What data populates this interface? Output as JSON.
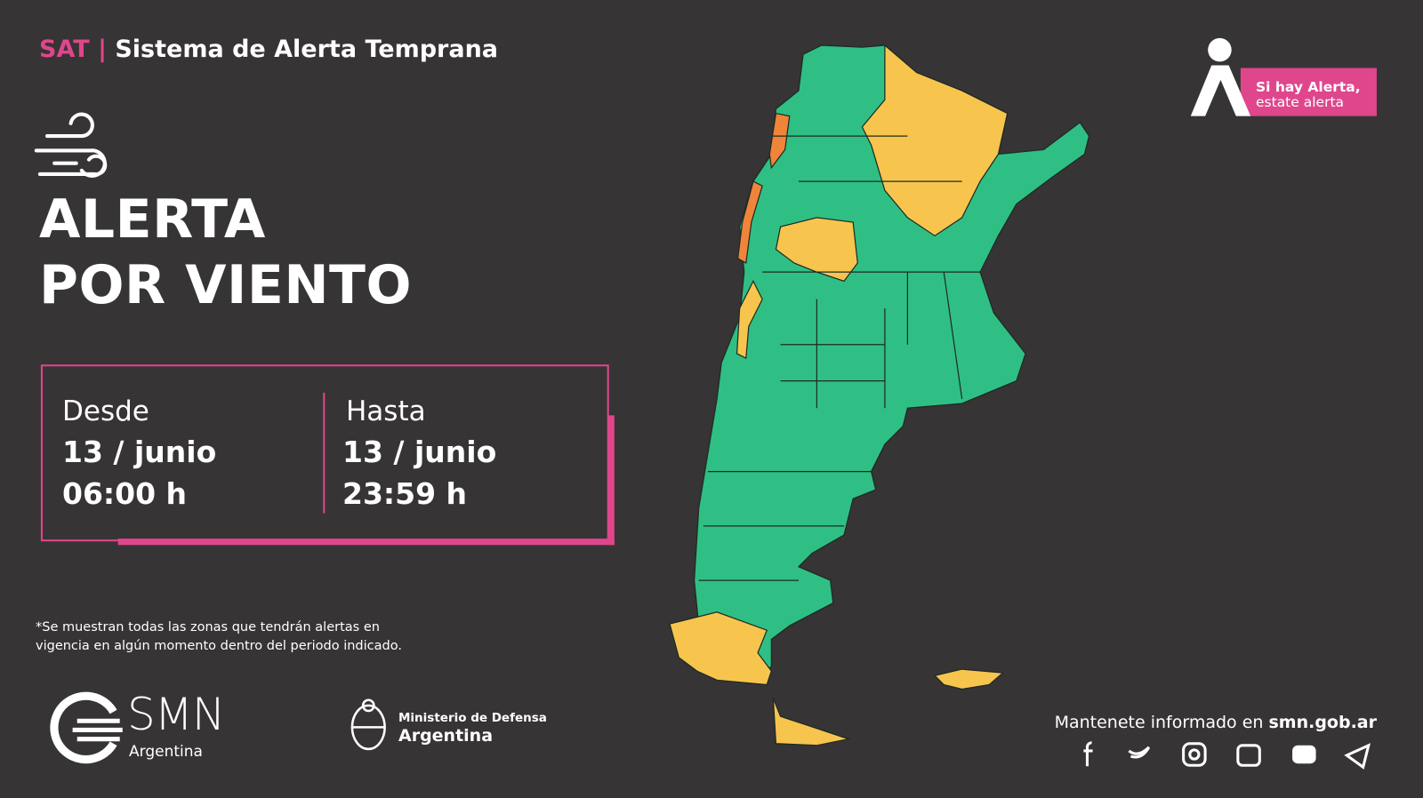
{
  "header": {
    "sat": "SAT",
    "separator": "|",
    "title": "Sistema de Alerta Temprana"
  },
  "alert": {
    "line1": "ALERTA",
    "line2": "POR VIENTO"
  },
  "period": {
    "from": {
      "label": "Desde",
      "date": "13 / junio",
      "time": "06:00 h"
    },
    "to": {
      "label": "Hasta",
      "date": "13 / junio",
      "time": "23:59 h"
    }
  },
  "footnote": {
    "line1": "*Se muestran todas las zonas que tendrán alertas en",
    "line2": "vigencia en algún momento dentro del periodo indicado."
  },
  "badge": {
    "line1": "Si hay Alerta,",
    "line2": "estate alerta"
  },
  "logos": {
    "smn": "SMN",
    "smn_country": "Argentina",
    "ministry": "Ministerio de Defensa",
    "ministry_country": "Argentina"
  },
  "footer": {
    "text": "Mantenete informado en ",
    "site": "smn.gob.ar"
  }
}
